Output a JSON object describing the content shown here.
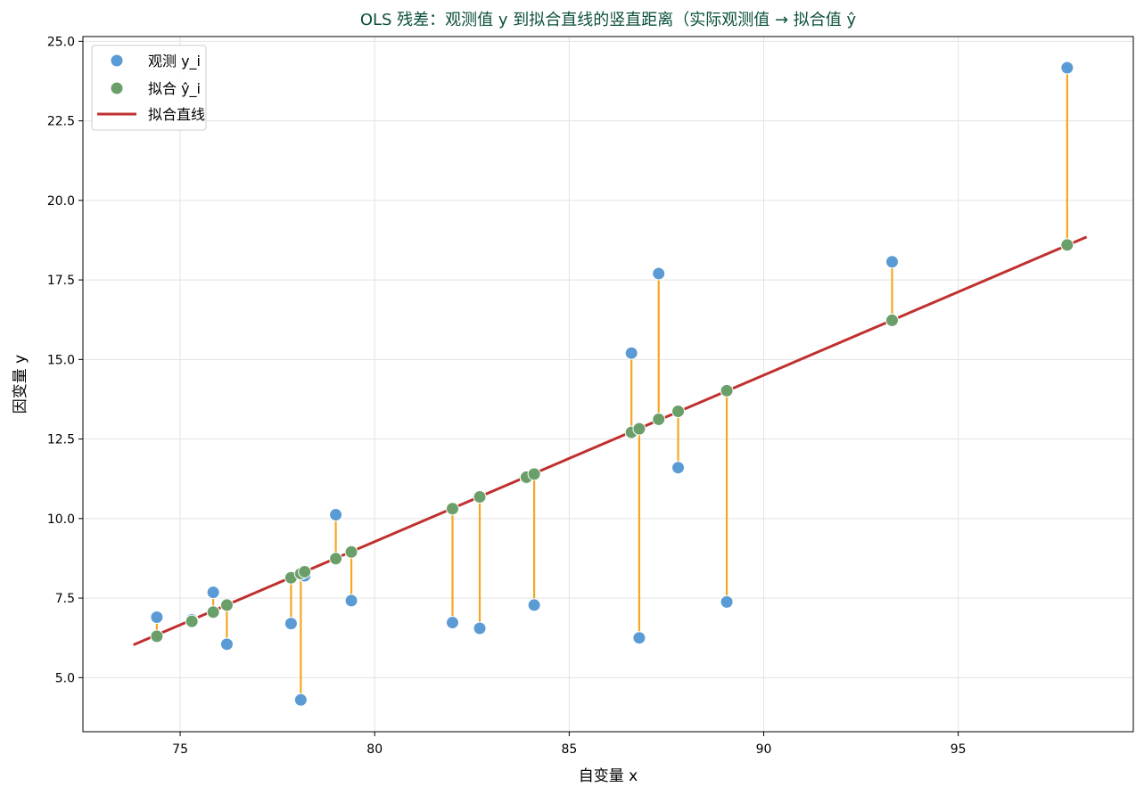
{
  "chart_data": {
    "type": "scatter",
    "title": "OLS 残差：观测值 y 到拟合直线的竖直距离（实际观测值 → 拟合值 ŷ",
    "xlabel": "自变量 x",
    "ylabel": "因变量 y",
    "xlim": [
      72.5,
      99.5
    ],
    "ylim": [
      3.3,
      25.15
    ],
    "xticks": [
      75,
      80,
      85,
      90,
      95
    ],
    "yticks": [
      5.0,
      7.5,
      10.0,
      12.5,
      15.0,
      17.5,
      20.0,
      22.5,
      25.0
    ],
    "grid": true,
    "legend_position": "top-left",
    "fit_line": {
      "x": [
        73.8,
        98.3
      ],
      "y": [
        6.03,
        18.85
      ]
    },
    "x": [
      74.4,
      75.3,
      75.85,
      76.2,
      77.85,
      78.1,
      78.2,
      79.0,
      79.4,
      82.0,
      82.7,
      83.9,
      84.1,
      86.6,
      86.8,
      87.3,
      87.8,
      89.05,
      93.3,
      97.8
    ],
    "observed": [
      6.9,
      6.82,
      7.68,
      6.05,
      6.7,
      4.3,
      8.2,
      10.12,
      7.42,
      6.73,
      6.55,
      11.27,
      7.28,
      15.2,
      6.25,
      17.7,
      11.6,
      7.38,
      18.07,
      24.17
    ],
    "fitted": [
      6.3,
      6.77,
      7.06,
      7.28,
      8.14,
      8.27,
      8.33,
      8.74,
      8.95,
      10.31,
      10.68,
      11.3,
      11.4,
      12.71,
      12.82,
      13.12,
      13.37,
      14.02,
      16.23,
      18.6
    ],
    "series": [
      {
        "name": "观测 y_i",
        "color": "#5b9bd5"
      },
      {
        "name": "拟合 ŷ_i",
        "color": "#6a9f6a"
      },
      {
        "name": "拟合直线",
        "color": "#c0302f"
      }
    ],
    "residual_color": "#f5a623"
  }
}
